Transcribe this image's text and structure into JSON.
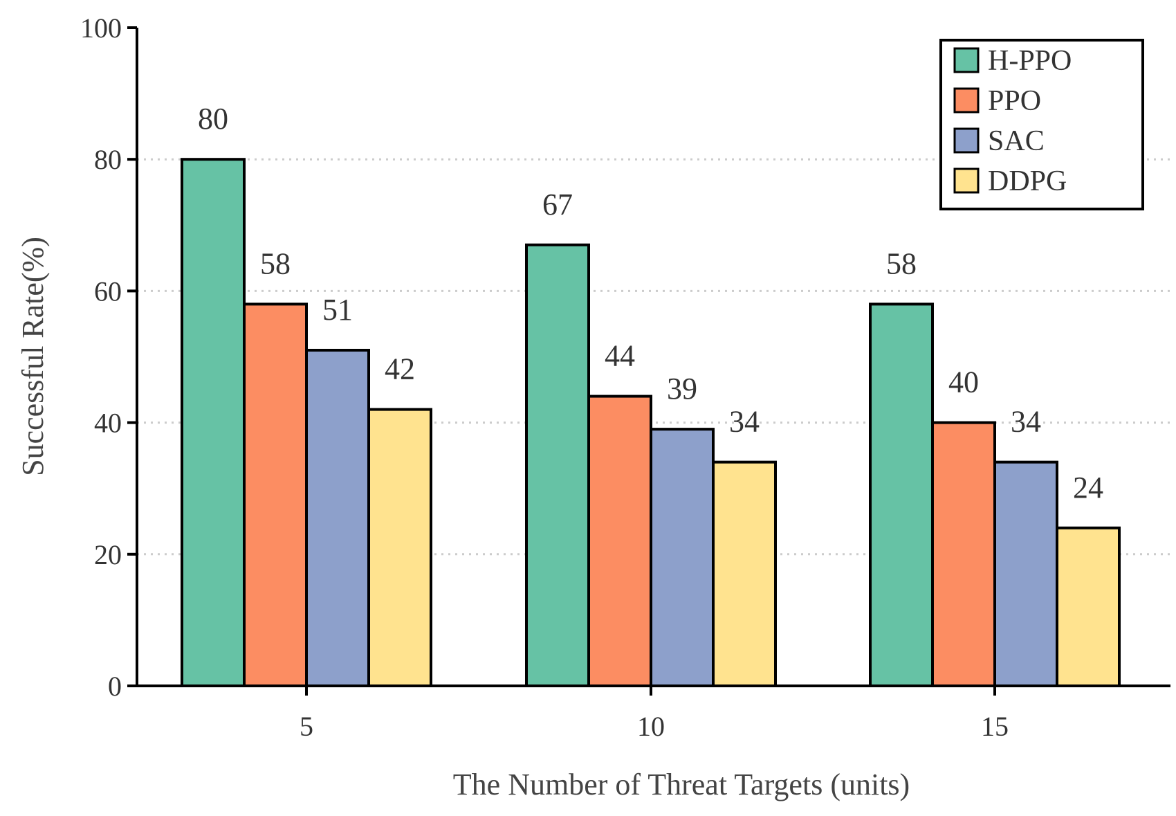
{
  "chart_data": {
    "type": "bar",
    "title": "",
    "xlabel": "The Number of Threat Targets (units)",
    "ylabel": "Successful Rate(%)",
    "categories": [
      "5",
      "10",
      "15"
    ],
    "ylim": [
      0,
      100
    ],
    "yticks": [
      "0",
      "20",
      "40",
      "60",
      "80",
      "100"
    ],
    "grid": "horizontal dotted",
    "legend_position": "top-right",
    "series": [
      {
        "name": "H-PPO",
        "color": "#66c2a5",
        "values": [
          80,
          67,
          58
        ],
        "labels": [
          "80",
          "67",
          "58"
        ]
      },
      {
        "name": "PPO",
        "color": "#fc8d62",
        "values": [
          58,
          44,
          40
        ],
        "labels": [
          "58",
          "44",
          "40"
        ]
      },
      {
        "name": "SAC",
        "color": "#8da0cb",
        "values": [
          51,
          39,
          34
        ],
        "labels": [
          "51",
          "39",
          "34"
        ]
      },
      {
        "name": "DDPG",
        "color": "#ffe38f",
        "values": [
          42,
          34,
          24
        ],
        "labels": [
          "42",
          "34",
          "24"
        ]
      }
    ]
  }
}
